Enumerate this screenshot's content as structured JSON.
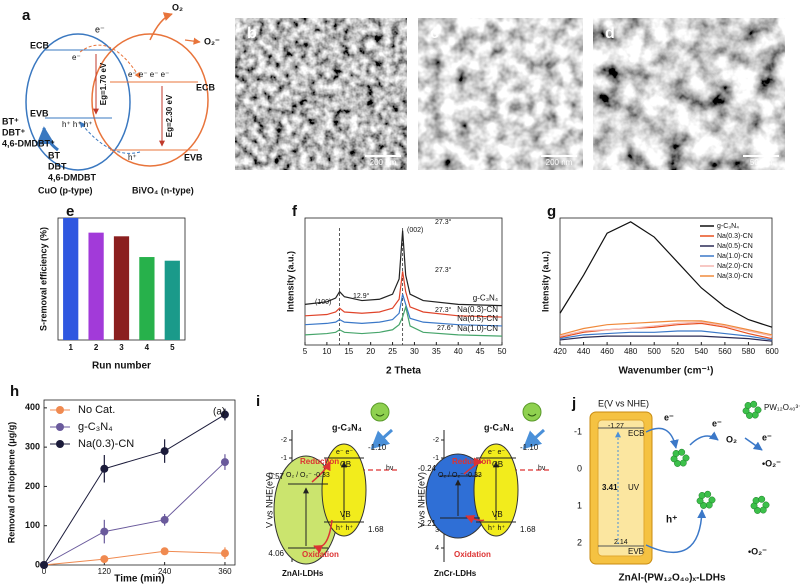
{
  "chart_data": [
    {
      "type": "bar",
      "panel": "e",
      "y_label": "S-removal efficiency (%)",
      "x_label": "Run number",
      "categories": [
        "1",
        "2",
        "3",
        "4",
        "5"
      ],
      "values": [
        100,
        88,
        85,
        68,
        65
      ],
      "colors": [
        "#2f57e0",
        "#a23ad9",
        "#8b1f1f",
        "#27b14b",
        "#1a9a8a"
      ],
      "ylim": [
        0,
        100
      ]
    },
    {
      "type": "line",
      "panel": "f",
      "x_label": "2 Theta",
      "y_label": "Intensity (a.u.)",
      "x": [
        5,
        10,
        12,
        12.9,
        14,
        18,
        22,
        25,
        26.5,
        27.3,
        28,
        29,
        32,
        40,
        50
      ],
      "series": [
        {
          "name": "g-C₃N₄",
          "color": "#222222",
          "values": [
            3.2,
            3.4,
            3.7,
            4.2,
            3.8,
            3.5,
            3.6,
            4.0,
            5.2,
            9.0,
            5.5,
            4.0,
            3.5,
            3.2,
            3.1
          ]
        },
        {
          "name": "Na(0.3)-CN",
          "color": "#e0442a",
          "values": [
            2.3,
            2.4,
            2.6,
            2.9,
            2.6,
            2.5,
            2.6,
            2.9,
            3.6,
            5.8,
            4.2,
            3.0,
            2.6,
            2.3,
            2.2
          ]
        },
        {
          "name": "Na(0.5)-CN",
          "color": "#3b78c8",
          "values": [
            1.6,
            1.7,
            1.8,
            2.0,
            1.8,
            1.7,
            1.8,
            2.0,
            2.5,
            4.0,
            3.2,
            2.1,
            1.8,
            1.6,
            1.5
          ]
        },
        {
          "name": "Na(1.0)-CN",
          "color": "#47a56b",
          "values": [
            0.8,
            0.9,
            1.0,
            1.2,
            1.0,
            0.9,
            1.0,
            1.2,
            1.6,
            2.2,
            3.0,
            1.5,
            1.0,
            0.8,
            0.7
          ]
        }
      ],
      "reference_lines": [
        12.9,
        27.3
      ],
      "annotations": [
        "(100)",
        "12.9°",
        "(002)",
        "27.3°",
        "27.3°",
        "27.3°",
        "27.6°"
      ],
      "xlim": [
        5,
        50
      ],
      "xticks": [
        5,
        10,
        15,
        20,
        25,
        30,
        35,
        40,
        45,
        50
      ],
      "ylim": [
        0,
        10
      ]
    },
    {
      "type": "line",
      "panel": "g",
      "x_label": "Wavenumber (cm⁻¹)",
      "y_label": "Intensity (a.u.)",
      "x": [
        420,
        440,
        460,
        480,
        500,
        520,
        540,
        560,
        580,
        600
      ],
      "series": [
        {
          "name": "g-C₃N₄",
          "color": "#111111",
          "values": [
            0.25,
            0.55,
            0.88,
            0.97,
            0.85,
            0.65,
            0.45,
            0.3,
            0.2,
            0.14
          ]
        },
        {
          "name": "Na(0.3)-CN",
          "color": "#e8501f",
          "values": [
            0.06,
            0.1,
            0.12,
            0.13,
            0.14,
            0.16,
            0.17,
            0.14,
            0.09,
            0.05
          ]
        },
        {
          "name": "Na(0.5)-CN",
          "color": "#2b2b55",
          "values": [
            0.04,
            0.06,
            0.07,
            0.07,
            0.07,
            0.07,
            0.07,
            0.06,
            0.05,
            0.03
          ]
        },
        {
          "name": "Na(1.0)-CN",
          "color": "#3b78c8",
          "values": [
            0.05,
            0.08,
            0.09,
            0.1,
            0.1,
            0.11,
            0.11,
            0.09,
            0.07,
            0.04
          ]
        },
        {
          "name": "Na(2.0)-CN",
          "color": "#f4b6b0",
          "values": [
            0.07,
            0.11,
            0.12,
            0.13,
            0.15,
            0.17,
            0.18,
            0.15,
            0.11,
            0.07
          ]
        },
        {
          "name": "Na(3.0)-CN",
          "color": "#f08a3c",
          "values": [
            0.08,
            0.13,
            0.16,
            0.17,
            0.18,
            0.19,
            0.19,
            0.16,
            0.12,
            0.08
          ]
        }
      ],
      "xlim": [
        420,
        600
      ],
      "xticks": [
        420,
        440,
        460,
        480,
        500,
        520,
        540,
        560,
        580,
        600
      ],
      "ylim": [
        0,
        1
      ],
      "legend": "upper right"
    },
    {
      "type": "errorline",
      "panel": "h",
      "annotation": "(a)",
      "x_label": "Time (min)",
      "y_label": "Removal of thiophene (μg/g)",
      "x": [
        0,
        120,
        240,
        360
      ],
      "series": [
        {
          "name": "No Cat.",
          "color": "#f08a50",
          "values": [
            0,
            15,
            35,
            30
          ],
          "errors": [
            0,
            3,
            5,
            15
          ]
        },
        {
          "name": "g-C₃N₄",
          "color": "#6a5a9c",
          "values": [
            0,
            85,
            115,
            262
          ],
          "errors": [
            0,
            30,
            15,
            20
          ]
        },
        {
          "name": "Na(0.3)-CN",
          "color": "#1b1b3a",
          "values": [
            0,
            245,
            290,
            383
          ],
          "errors": [
            0,
            35,
            30,
            15
          ]
        }
      ],
      "xlim": [
        0,
        380
      ],
      "xticks": [
        0,
        120,
        240,
        360
      ],
      "ylim": [
        0,
        420
      ],
      "yticks": [
        0,
        100,
        200,
        300,
        400
      ],
      "legend": "upper left"
    }
  ],
  "panel_a": {
    "label": "a",
    "o2": "O₂",
    "o2_radical": "O₂⁻",
    "ecb_left": "ECB",
    "ecb_right": "ECB",
    "evb_left": "EVB",
    "evb_right": "EVB",
    "eg_left": "Eg=1.70 eV",
    "eg_right": "Eg=2.30 eV",
    "oxidized": [
      "BT⁺",
      "DBT⁺",
      "4,6-DMDBT⁺"
    ],
    "reactants": [
      "BT",
      "DBT",
      "4,6-DMDBT"
    ],
    "cuo": "CuO (p-type)",
    "bivo4": "BiVO₄ (n-type)",
    "electron_top": "e⁻",
    "electrons_right": "e⁻ e⁻ e⁻ e⁻",
    "electron_left": "e⁻",
    "holes_left": "h⁺ h⁺ h⁺",
    "hole_right": "h⁺"
  },
  "images": [
    {
      "label": "b",
      "scale": "200 nm"
    },
    {
      "label": "c",
      "scale": "200 nm"
    },
    {
      "label": "d",
      "scale": "50 nm"
    }
  ],
  "panel_i": {
    "label": "i",
    "axis": "V vs NHE(eV)",
    "ticks": [
      "-2",
      "-1",
      "0",
      "1",
      "2",
      "3",
      "4"
    ],
    "left": {
      "gcn": "g-C₃N₄",
      "reduction": "Reduction",
      "couple": "O₂ / O₂⁻ -0.33",
      "cb_value": "-1.10",
      "cb": "CB",
      "vb": "VB",
      "vb_value": "1.68",
      "ldh_cb": "0.57",
      "ldh_vb": "4.06",
      "oxidation": "Oxidation",
      "name": "ZnAl-LDHs",
      "electrons": "e⁻ e⁻",
      "holes": "h⁺ h⁺",
      "light": "hν"
    },
    "right": {
      "gcn": "g-C₃N₄",
      "reduction": "Reduction",
      "couple": "O₂ / O₂⁻ -0.33",
      "cb_value": "-1.10",
      "cb": "CB",
      "vb": "VB",
      "vb_value": "1.68",
      "ldh_cb": "-0.24",
      "ldh_vb": "2.21",
      "oxidation": "Oxidation",
      "name": "ZnCr-LDHs",
      "electrons": "e⁻ e⁻",
      "holes": "h⁺ h⁺",
      "light": "hν"
    }
  },
  "panel_j": {
    "label": "j",
    "axis": "E(V vs NHE)",
    "ticks": [
      "-1",
      "0",
      "1",
      "2"
    ],
    "cb_value": "-1.27",
    "ecb": "ECB",
    "gap": "3.41",
    "uv": "UV",
    "vb_value": "2.14",
    "evb": "EVB",
    "e1": "e⁻",
    "e2": "e⁻",
    "e3": "e⁻",
    "o2": "O₂",
    "rad1": "•O₂⁻",
    "rad2": "•O₂⁻",
    "hole": "h⁺",
    "cluster": "PW₁₂O₄₀³⁻",
    "title": "ZnAl-(PW₁₂O₄₀)ₓ-LDHs"
  }
}
